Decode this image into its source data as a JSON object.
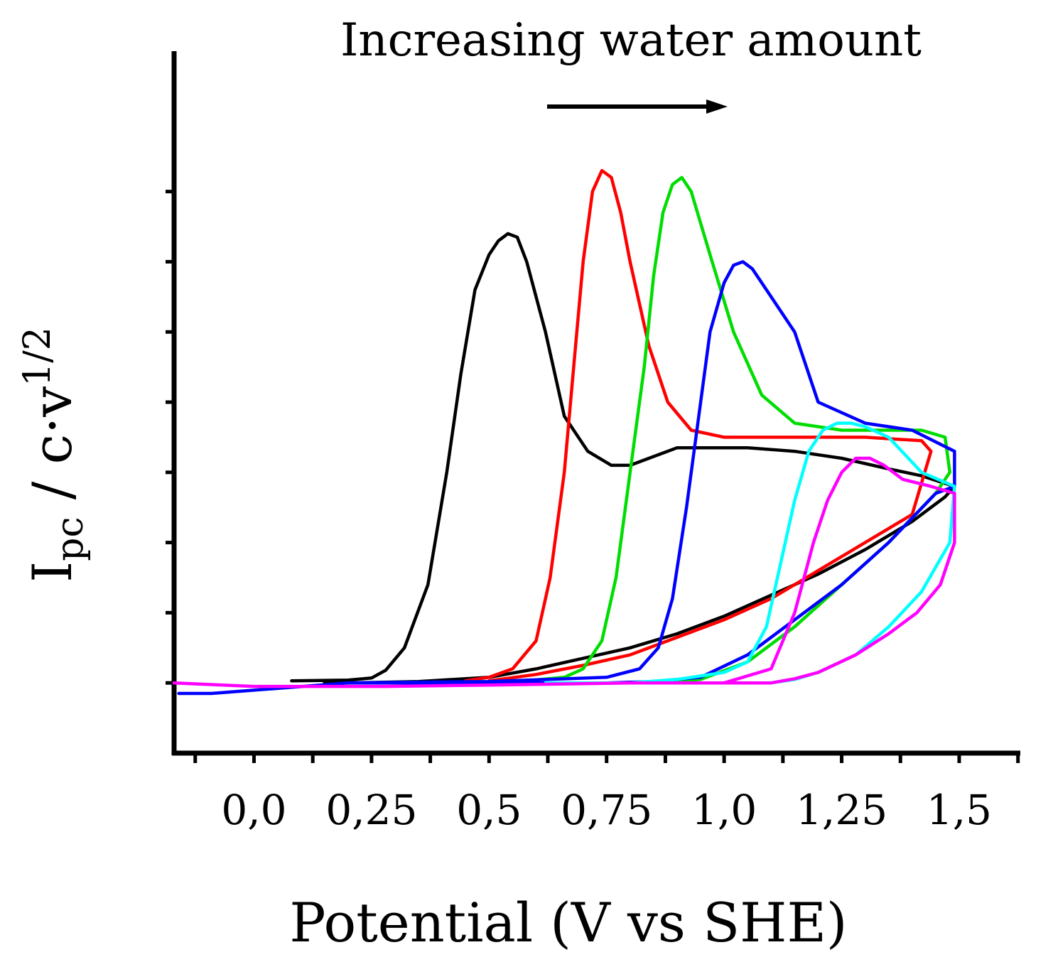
{
  "annotation": {
    "text": "Increasing water amount",
    "arrow_direction": "right"
  },
  "chart_data": {
    "type": "line",
    "title": "",
    "xlabel": "Potential (V vs SHE)",
    "ylabel": {
      "main": "I",
      "subscript": "pc",
      "rest": " / c·v",
      "superscript": "1/2"
    },
    "x_tick_labels": [
      "0,0",
      "0,25",
      "0,5",
      "0,75",
      "1,0",
      "1,25",
      "1,5"
    ],
    "x_ticks": [
      0.0,
      0.25,
      0.5,
      0.75,
      1.0,
      1.25,
      1.5
    ],
    "xlim": [
      -0.17,
      1.63
    ],
    "ylim": [
      -0.1,
      0.9
    ],
    "y_ticks": [
      0.0,
      0.1,
      0.2,
      0.3,
      0.4,
      0.5,
      0.6,
      0.7
    ],
    "y_tick_labels_visible": false,
    "legend": "none",
    "grid": false,
    "series": [
      {
        "name": "black",
        "color": "#000000",
        "x": [
          0.08,
          0.2,
          0.25,
          0.28,
          0.32,
          0.37,
          0.41,
          0.44,
          0.47,
          0.5,
          0.52,
          0.54,
          0.56,
          0.58,
          0.62,
          0.66,
          0.71,
          0.76,
          0.8,
          0.84,
          0.9,
          0.95,
          1.05,
          1.15,
          1.25,
          1.35,
          1.42,
          1.49,
          1.47,
          1.44,
          1.4,
          1.3,
          1.2,
          1.1,
          1.0,
          0.9,
          0.8,
          0.7,
          0.6,
          0.5,
          0.35,
          0.2,
          0.15
        ],
        "y": [
          0.003,
          0.004,
          0.007,
          0.018,
          0.05,
          0.14,
          0.3,
          0.44,
          0.56,
          0.61,
          0.63,
          0.64,
          0.635,
          0.6,
          0.5,
          0.38,
          0.33,
          0.31,
          0.31,
          0.32,
          0.335,
          0.335,
          0.335,
          0.33,
          0.32,
          0.305,
          0.295,
          0.28,
          0.265,
          0.25,
          0.23,
          0.19,
          0.155,
          0.125,
          0.095,
          0.07,
          0.05,
          0.035,
          0.02,
          0.008,
          0.002,
          0.0,
          0.0
        ]
      },
      {
        "name": "red",
        "color": "#ff0000",
        "x": [
          0.45,
          0.5,
          0.55,
          0.6,
          0.63,
          0.66,
          0.68,
          0.7,
          0.72,
          0.74,
          0.76,
          0.78,
          0.8,
          0.84,
          0.88,
          0.93,
          1.0,
          1.1,
          1.2,
          1.3,
          1.42,
          1.44,
          1.4,
          1.3,
          1.2,
          1.1,
          1.0,
          0.9,
          0.8,
          0.7,
          0.6,
          0.5
        ],
        "y": [
          0.003,
          0.008,
          0.02,
          0.06,
          0.15,
          0.3,
          0.45,
          0.6,
          0.7,
          0.73,
          0.72,
          0.67,
          0.6,
          0.48,
          0.4,
          0.36,
          0.35,
          0.35,
          0.35,
          0.35,
          0.345,
          0.33,
          0.24,
          0.2,
          0.16,
          0.12,
          0.09,
          0.065,
          0.04,
          0.025,
          0.012,
          0.003
        ]
      },
      {
        "name": "green",
        "color": "#00dd00",
        "x": [
          0.58,
          0.66,
          0.7,
          0.74,
          0.77,
          0.8,
          0.83,
          0.85,
          0.87,
          0.89,
          0.91,
          0.93,
          0.97,
          1.02,
          1.08,
          1.15,
          1.25,
          1.35,
          1.42,
          1.47,
          1.48,
          1.45,
          1.35,
          1.25,
          1.15,
          1.05,
          0.95,
          0.85,
          0.75,
          0.65
        ],
        "y": [
          0.003,
          0.008,
          0.02,
          0.06,
          0.15,
          0.3,
          0.45,
          0.58,
          0.67,
          0.71,
          0.72,
          0.7,
          0.61,
          0.5,
          0.41,
          0.37,
          0.36,
          0.36,
          0.36,
          0.35,
          0.3,
          0.27,
          0.2,
          0.14,
          0.08,
          0.03,
          0.005,
          0.0,
          0.0,
          0.0
        ]
      },
      {
        "name": "blue",
        "color": "#0000ff",
        "x": [
          -0.16,
          -0.09,
          0.2,
          0.5,
          0.75,
          0.82,
          0.86,
          0.89,
          0.92,
          0.95,
          0.97,
          1.0,
          1.02,
          1.04,
          1.06,
          1.1,
          1.15,
          1.2,
          1.3,
          1.4,
          1.49,
          1.49,
          1.45,
          1.35,
          1.25,
          1.15,
          1.05,
          0.95,
          0.85,
          0.75,
          0.6,
          0.4,
          0.2
        ],
        "y": [
          -0.015,
          -0.015,
          0.0,
          0.002,
          0.008,
          0.02,
          0.05,
          0.12,
          0.25,
          0.4,
          0.5,
          0.57,
          0.595,
          0.6,
          0.59,
          0.55,
          0.5,
          0.4,
          0.37,
          0.36,
          0.33,
          0.28,
          0.27,
          0.2,
          0.14,
          0.09,
          0.04,
          0.008,
          0.002,
          0.0,
          0.0,
          0.0,
          0.0
        ]
      },
      {
        "name": "cyan",
        "color": "#00ffff",
        "x": [
          0.62,
          0.8,
          0.9,
          1.0,
          1.05,
          1.09,
          1.12,
          1.15,
          1.18,
          1.21,
          1.24,
          1.27,
          1.3,
          1.35,
          1.42,
          1.49,
          1.48,
          1.42,
          1.35,
          1.28,
          1.2,
          1.15,
          1.1,
          1.05,
          0.95,
          0.8
        ],
        "y": [
          0.0,
          0.0,
          0.005,
          0.015,
          0.03,
          0.08,
          0.17,
          0.26,
          0.33,
          0.36,
          0.37,
          0.37,
          0.365,
          0.35,
          0.3,
          0.28,
          0.2,
          0.13,
          0.08,
          0.04,
          0.015,
          0.005,
          0.0,
          0.0,
          0.0,
          0.0
        ]
      },
      {
        "name": "magenta",
        "color": "#ff00ff",
        "x": [
          -0.17,
          0.0,
          0.28,
          0.5,
          0.8,
          1.0,
          1.1,
          1.15,
          1.19,
          1.22,
          1.25,
          1.28,
          1.31,
          1.34,
          1.38,
          1.44,
          1.49,
          1.49,
          1.46,
          1.41,
          1.35,
          1.28,
          1.2,
          1.15,
          1.1,
          1.05,
          0.98,
          0.85
        ],
        "y": [
          0.0,
          -0.005,
          -0.005,
          -0.003,
          0.0,
          0.0,
          0.02,
          0.1,
          0.2,
          0.26,
          0.3,
          0.32,
          0.32,
          0.31,
          0.29,
          0.28,
          0.27,
          0.2,
          0.14,
          0.1,
          0.07,
          0.04,
          0.015,
          0.006,
          0.0,
          0.0,
          0.0,
          0.0
        ]
      }
    ]
  }
}
